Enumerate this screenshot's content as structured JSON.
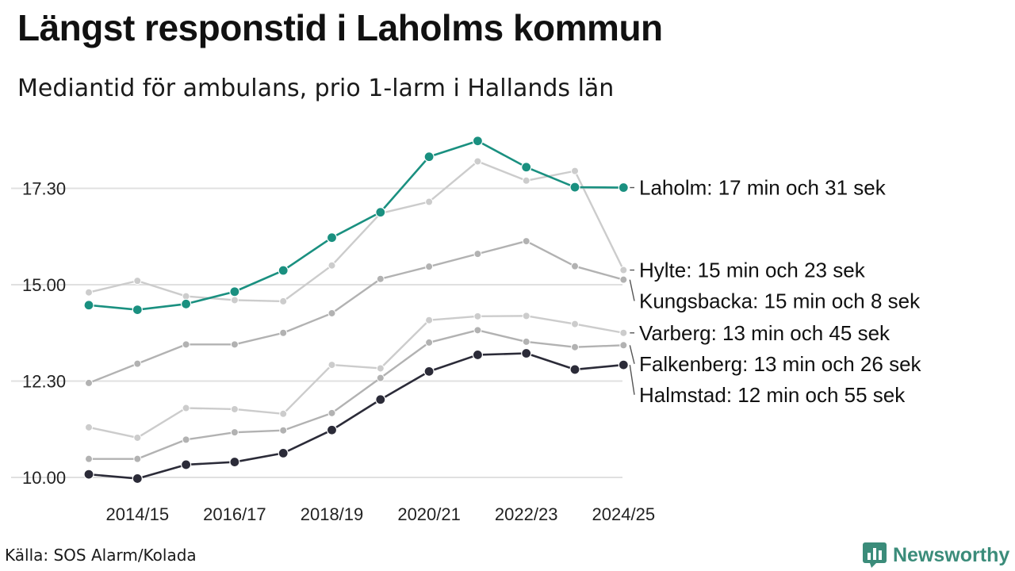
{
  "header": {
    "title": "Längst responstid i Laholms kommun",
    "subtitle": "Mediantid för ambulans, prio 1-larm i Hallands län"
  },
  "footer": {
    "source": "Källa: SOS Alarm/Kolada",
    "brand": "Newsworthy"
  },
  "colors": {
    "highlight": "#1a9080",
    "dark": "#2b2b38",
    "light_gray": "#cccccc",
    "mid_gray": "#b2b2b2",
    "gridline": "#e0e0e0",
    "brand": "#3b8c7a"
  },
  "chart_data": {
    "type": "line",
    "title": "Längst responstid i Laholms kommun",
    "subtitle": "Mediantid för ambulans, prio 1-larm i Hallands län",
    "x": [
      "2013/14",
      "2014/15",
      "2015/16",
      "2016/17",
      "2017/18",
      "2018/19",
      "2019/20",
      "2020/21",
      "2021/22",
      "2022/23",
      "2023/24",
      "2024/25"
    ],
    "x_tick_labels": [
      "2014/15",
      "2016/17",
      "2018/19",
      "2020/21",
      "2022/23",
      "2024/25"
    ],
    "y_ticks": [
      10,
      12.5,
      15,
      17.5
    ],
    "y_tick_labels": [
      "10.00",
      "12.30",
      "15.00",
      "17.30"
    ],
    "ylim": [
      10,
      19
    ],
    "xlabel": "",
    "ylabel": "",
    "grid": true,
    "series": [
      {
        "name": "Hylte",
        "label": "Hylte: 15 min och 23 sek",
        "color": "#cccccc",
        "emphasis": false,
        "values": [
          14.8,
          15.1,
          14.7,
          14.6,
          14.57,
          15.5,
          16.85,
          17.15,
          18.2,
          17.7,
          17.95,
          15.38
        ]
      },
      {
        "name": "Varberg",
        "label": "Varberg: 13 min och 45 sek",
        "color": "#cccccc",
        "emphasis": false,
        "values": [
          11.3,
          11.03,
          11.8,
          11.77,
          11.65,
          12.92,
          12.83,
          14.08,
          14.18,
          14.19,
          13.98,
          13.75
        ]
      },
      {
        "name": "Kungsbacka",
        "label": "Kungsbacka: 15 min och 8 sek",
        "color": "#b2b2b2",
        "emphasis": false,
        "values": [
          12.45,
          12.95,
          13.45,
          13.45,
          13.75,
          14.26,
          15.15,
          15.47,
          15.8,
          16.13,
          15.48,
          15.13
        ]
      },
      {
        "name": "Falkenberg",
        "label": "Falkenberg: 13 min och 26 sek",
        "color": "#b2b2b2",
        "emphasis": false,
        "values": [
          10.48,
          10.48,
          10.98,
          11.17,
          11.22,
          11.67,
          12.58,
          13.5,
          13.82,
          13.52,
          13.38,
          13.43
        ]
      },
      {
        "name": "Halmstad",
        "label": "Halmstad: 12 min och 55 sek",
        "color": "#2b2b38",
        "emphasis": true,
        "values": [
          10.08,
          9.97,
          10.33,
          10.4,
          10.63,
          11.23,
          12.02,
          12.75,
          13.18,
          13.22,
          12.8,
          12.92
        ]
      },
      {
        "name": "Laholm",
        "label": "Laholm: 17 min och 31 sek",
        "color": "#1a9080",
        "emphasis": true,
        "values": [
          14.47,
          14.35,
          14.5,
          14.82,
          15.37,
          16.22,
          16.88,
          18.32,
          18.73,
          18.05,
          17.53,
          17.52
        ]
      }
    ]
  }
}
